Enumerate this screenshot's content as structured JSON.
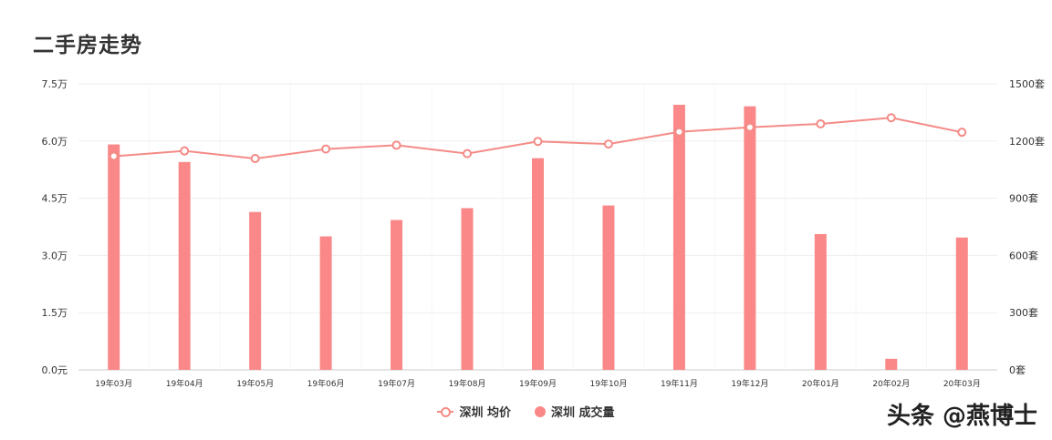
{
  "title": "二手房走势",
  "watermark": "头条 @燕博士",
  "legend": {
    "line_label": "深圳 均价",
    "bar_label": "深圳 成交量"
  },
  "colors": {
    "line": "#f48b87",
    "bar": "#fa8888",
    "grid": "#eeeeee",
    "axis_text": "#333333"
  },
  "chart_data": {
    "type": "bar+line",
    "categories": [
      "19年03月",
      "19年04月",
      "19年05月",
      "19年06月",
      "19年07月",
      "19年08月",
      "19年09月",
      "19年10月",
      "19年11月",
      "19年12月",
      "20年01月",
      "20年02月",
      "20年03月"
    ],
    "series": [
      {
        "name": "深圳 均价",
        "type": "line",
        "axis": "left",
        "values": [
          5.6,
          5.74,
          5.54,
          5.79,
          5.89,
          5.67,
          5.99,
          5.92,
          6.24,
          6.36,
          6.45,
          6.61,
          6.23
        ]
      },
      {
        "name": "深圳 成交量",
        "type": "bar",
        "axis": "right",
        "values": [
          1182,
          1090,
          828,
          700,
          786,
          848,
          1110,
          862,
          1390,
          1382,
          712,
          58,
          694
        ]
      }
    ],
    "y_left": {
      "ticks": [
        "0.0元",
        "1.5万",
        "3.0万",
        "4.5万",
        "6.0万",
        "7.5万"
      ],
      "range": [
        0,
        7.5
      ]
    },
    "y_right": {
      "ticks": [
        "0套",
        "300套",
        "600套",
        "900套",
        "1200套",
        "1500套"
      ],
      "range": [
        0,
        1500
      ]
    },
    "grid": true,
    "legend_position": "bottom-center"
  }
}
